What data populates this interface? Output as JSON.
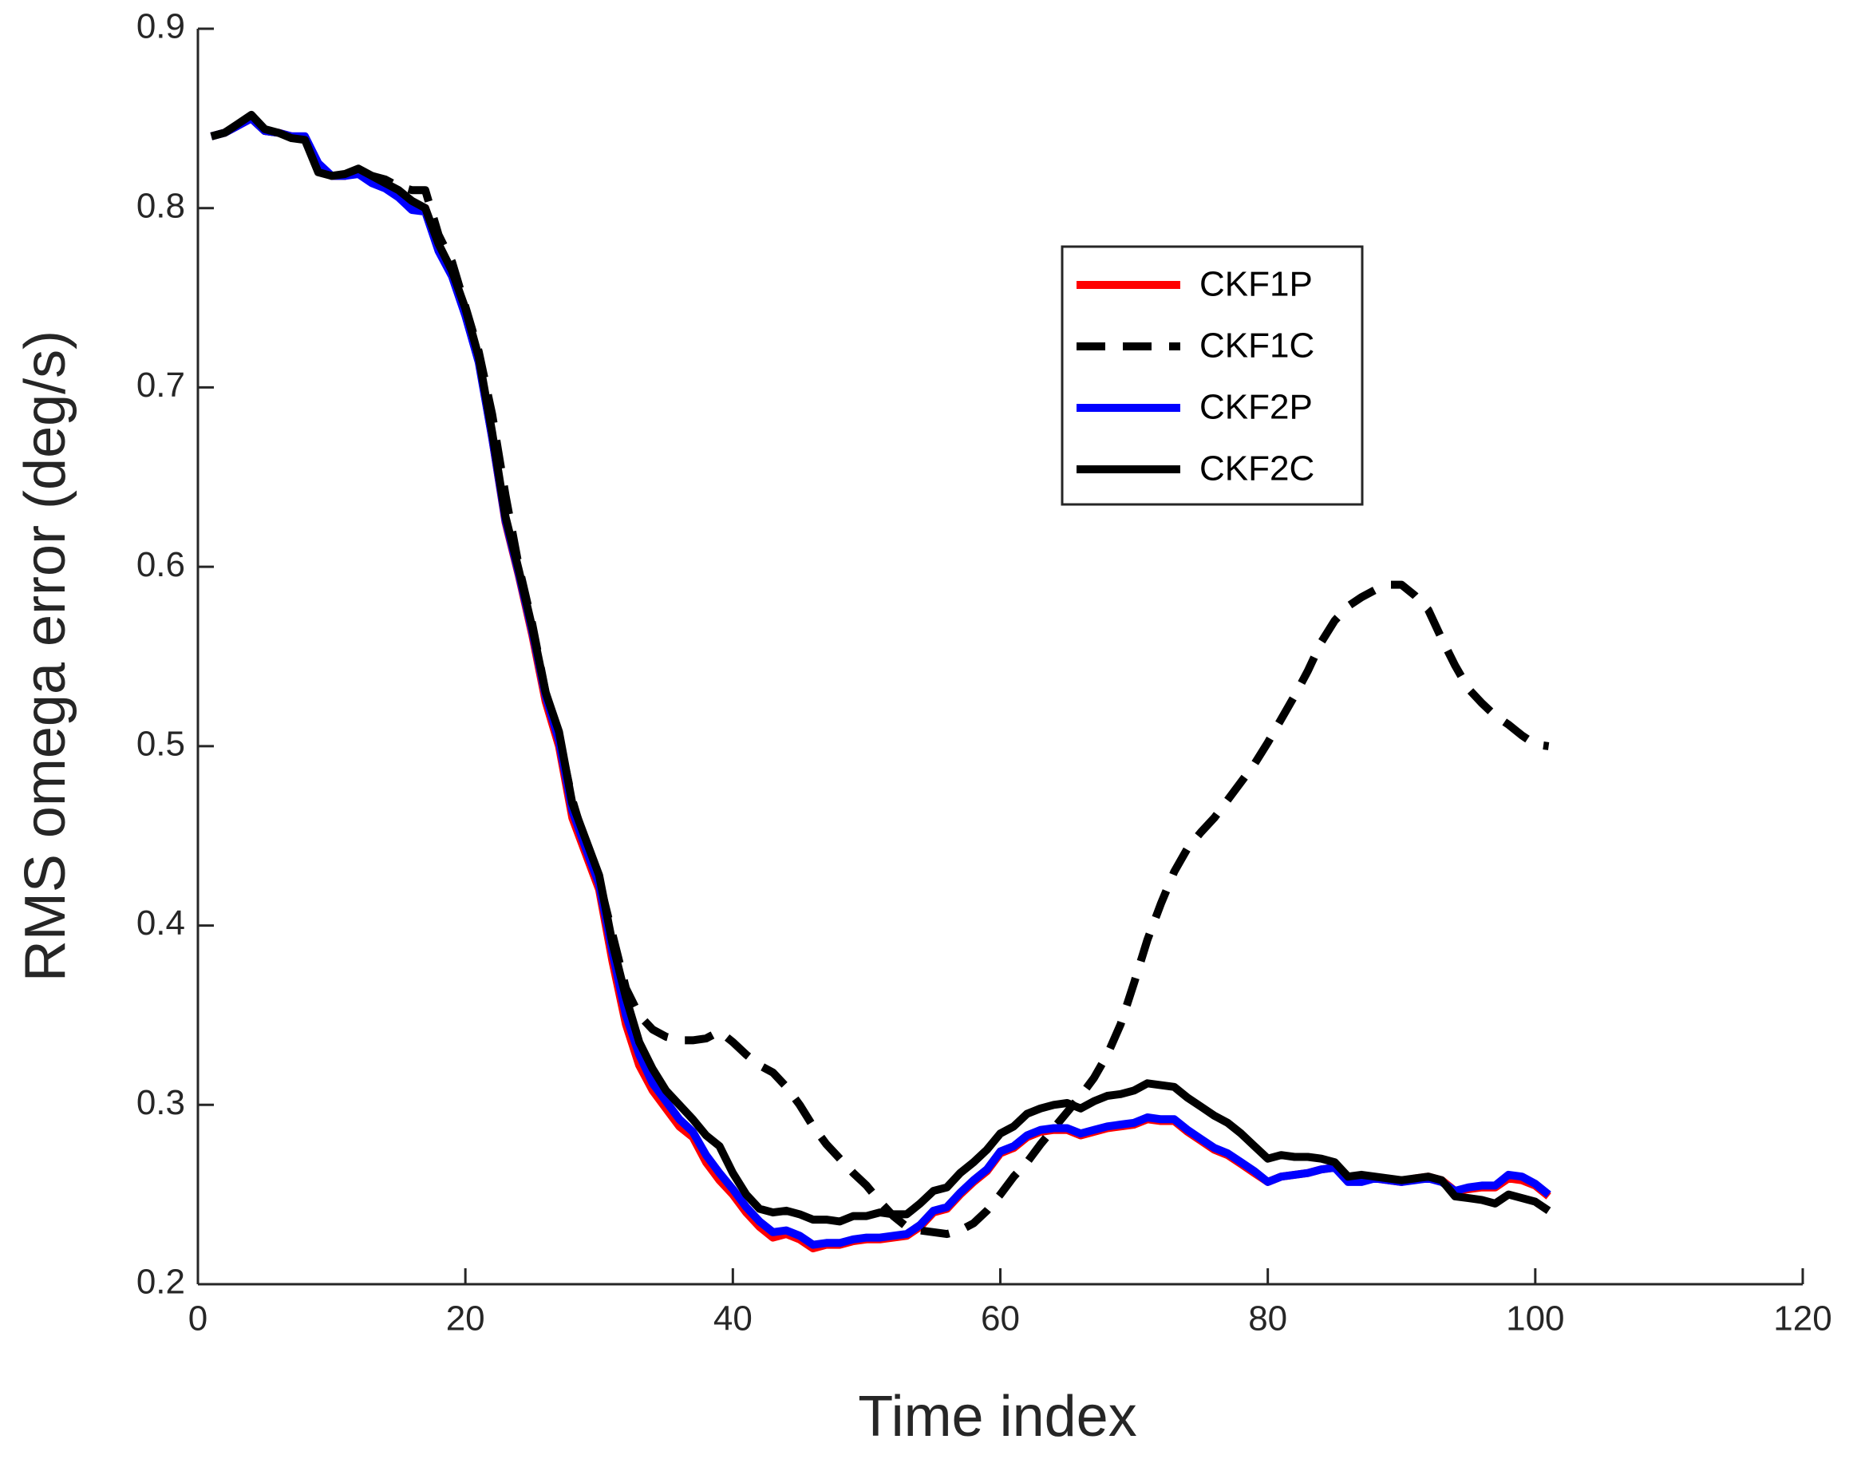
{
  "chart_data": {
    "type": "line",
    "xlabel": "Time index",
    "ylabel": "RMS omega error (deg/s)",
    "x": [
      1,
      2,
      3,
      4,
      5,
      6,
      7,
      8,
      9,
      10,
      11,
      12,
      13,
      14,
      15,
      16,
      17,
      18,
      19,
      20,
      21,
      22,
      23,
      24,
      25,
      26,
      27,
      28,
      29,
      30,
      31,
      32,
      33,
      34,
      35,
      36,
      37,
      38,
      39,
      40,
      41,
      42,
      43,
      44,
      45,
      46,
      47,
      48,
      49,
      50,
      51,
      52,
      53,
      54,
      55,
      56,
      57,
      58,
      59,
      60,
      61,
      62,
      63,
      64,
      65,
      66,
      67,
      68,
      69,
      70,
      71,
      72,
      73,
      74,
      75,
      76,
      77,
      78,
      79,
      80,
      81,
      82,
      83,
      84,
      85,
      86,
      87,
      88,
      89,
      90,
      91,
      92,
      93,
      94,
      95,
      96,
      97,
      98,
      99,
      100,
      101
    ],
    "series": [
      {
        "name": "CKF1P",
        "color": "#ff0000",
        "linestyle": "solid",
        "values": [
          0.84,
          0.842,
          0.846,
          0.85,
          0.843,
          0.842,
          0.84,
          0.839,
          0.823,
          0.818,
          0.818,
          0.82,
          0.816,
          0.812,
          0.808,
          0.801,
          0.8,
          0.778,
          0.763,
          0.742,
          0.715,
          0.672,
          0.625,
          0.595,
          0.562,
          0.525,
          0.5,
          0.46,
          0.44,
          0.42,
          0.38,
          0.345,
          0.322,
          0.308,
          0.298,
          0.288,
          0.282,
          0.268,
          0.258,
          0.25,
          0.24,
          0.232,
          0.226,
          0.228,
          0.225,
          0.22,
          0.222,
          0.222,
          0.224,
          0.225,
          0.225,
          0.226,
          0.227,
          0.232,
          0.24,
          0.242,
          0.25,
          0.257,
          0.263,
          0.273,
          0.276,
          0.282,
          0.285,
          0.286,
          0.286,
          0.283,
          0.285,
          0.287,
          0.288,
          0.289,
          0.292,
          0.291,
          0.291,
          0.285,
          0.28,
          0.275,
          0.272,
          0.267,
          0.262,
          0.257,
          0.26,
          0.261,
          0.262,
          0.264,
          0.265,
          0.258,
          0.258,
          0.259,
          0.258,
          0.257,
          0.259,
          0.26,
          0.258,
          0.252,
          0.253,
          0.254,
          0.254,
          0.259,
          0.258,
          0.255,
          0.249
        ]
      },
      {
        "name": "CKF1C",
        "color": "#000000",
        "linestyle": "dashed",
        "values": [
          0.84,
          0.842,
          0.846,
          0.85,
          0.843,
          0.842,
          0.84,
          0.839,
          0.823,
          0.818,
          0.818,
          0.82,
          0.818,
          0.816,
          0.812,
          0.81,
          0.81,
          0.785,
          0.77,
          0.745,
          0.72,
          0.685,
          0.64,
          0.6,
          0.568,
          0.53,
          0.505,
          0.47,
          0.445,
          0.425,
          0.395,
          0.365,
          0.35,
          0.342,
          0.338,
          0.336,
          0.336,
          0.337,
          0.341,
          0.335,
          0.328,
          0.322,
          0.318,
          0.31,
          0.3,
          0.288,
          0.278,
          0.27,
          0.262,
          0.255,
          0.246,
          0.238,
          0.232,
          0.23,
          0.229,
          0.228,
          0.23,
          0.234,
          0.241,
          0.25,
          0.26,
          0.268,
          0.278,
          0.287,
          0.296,
          0.305,
          0.315,
          0.328,
          0.345,
          0.368,
          0.392,
          0.412,
          0.43,
          0.443,
          0.452,
          0.46,
          0.47,
          0.48,
          0.49,
          0.502,
          0.515,
          0.528,
          0.542,
          0.558,
          0.57,
          0.578,
          0.583,
          0.587,
          0.59,
          0.59,
          0.584,
          0.576,
          0.56,
          0.545,
          0.532,
          0.524,
          0.517,
          0.512,
          0.506,
          0.501,
          0.5
        ]
      },
      {
        "name": "CKF2P",
        "color": "#0000ff",
        "linestyle": "solid",
        "values": [
          0.84,
          0.842,
          0.846,
          0.85,
          0.843,
          0.842,
          0.84,
          0.84,
          0.825,
          0.818,
          0.818,
          0.819,
          0.814,
          0.811,
          0.806,
          0.799,
          0.798,
          0.776,
          0.762,
          0.74,
          0.714,
          0.672,
          0.626,
          0.596,
          0.564,
          0.528,
          0.503,
          0.464,
          0.443,
          0.423,
          0.385,
          0.35,
          0.328,
          0.312,
          0.302,
          0.292,
          0.285,
          0.272,
          0.262,
          0.253,
          0.243,
          0.235,
          0.229,
          0.23,
          0.227,
          0.222,
          0.223,
          0.223,
          0.225,
          0.226,
          0.226,
          0.227,
          0.228,
          0.233,
          0.241,
          0.243,
          0.251,
          0.258,
          0.264,
          0.274,
          0.277,
          0.283,
          0.286,
          0.287,
          0.287,
          0.284,
          0.286,
          0.288,
          0.289,
          0.29,
          0.293,
          0.292,
          0.292,
          0.286,
          0.281,
          0.276,
          0.273,
          0.268,
          0.263,
          0.257,
          0.26,
          0.261,
          0.262,
          0.264,
          0.265,
          0.257,
          0.257,
          0.259,
          0.258,
          0.257,
          0.258,
          0.259,
          0.257,
          0.252,
          0.254,
          0.255,
          0.255,
          0.261,
          0.26,
          0.256,
          0.25
        ]
      },
      {
        "name": "CKF2C",
        "color": "#000000",
        "linestyle": "solid",
        "values": [
          0.84,
          0.842,
          0.847,
          0.852,
          0.844,
          0.842,
          0.839,
          0.838,
          0.82,
          0.818,
          0.819,
          0.822,
          0.818,
          0.814,
          0.81,
          0.804,
          0.8,
          0.78,
          0.765,
          0.744,
          0.717,
          0.675,
          0.628,
          0.598,
          0.566,
          0.53,
          0.508,
          0.468,
          0.448,
          0.428,
          0.39,
          0.36,
          0.335,
          0.32,
          0.308,
          0.3,
          0.292,
          0.283,
          0.277,
          0.262,
          0.25,
          0.242,
          0.24,
          0.241,
          0.239,
          0.236,
          0.236,
          0.235,
          0.238,
          0.238,
          0.24,
          0.239,
          0.239,
          0.245,
          0.252,
          0.254,
          0.262,
          0.268,
          0.275,
          0.284,
          0.288,
          0.295,
          0.298,
          0.3,
          0.301,
          0.298,
          0.302,
          0.305,
          0.306,
          0.308,
          0.312,
          0.311,
          0.31,
          0.304,
          0.299,
          0.294,
          0.29,
          0.284,
          0.277,
          0.27,
          0.272,
          0.271,
          0.271,
          0.27,
          0.268,
          0.26,
          0.261,
          0.26,
          0.259,
          0.258,
          0.259,
          0.26,
          0.258,
          0.249,
          0.248,
          0.247,
          0.245,
          0.25,
          0.248,
          0.246,
          0.241
        ]
      }
    ],
    "xlim": [
      0,
      120
    ],
    "xticks": [
      0,
      20,
      40,
      60,
      80,
      100,
      120
    ],
    "ylim": [
      0.2,
      0.9
    ],
    "yticks": [
      0.2,
      0.3,
      0.4,
      0.5,
      0.6,
      0.7,
      0.8,
      0.9
    ],
    "grid": false,
    "legend": "upper right"
  }
}
